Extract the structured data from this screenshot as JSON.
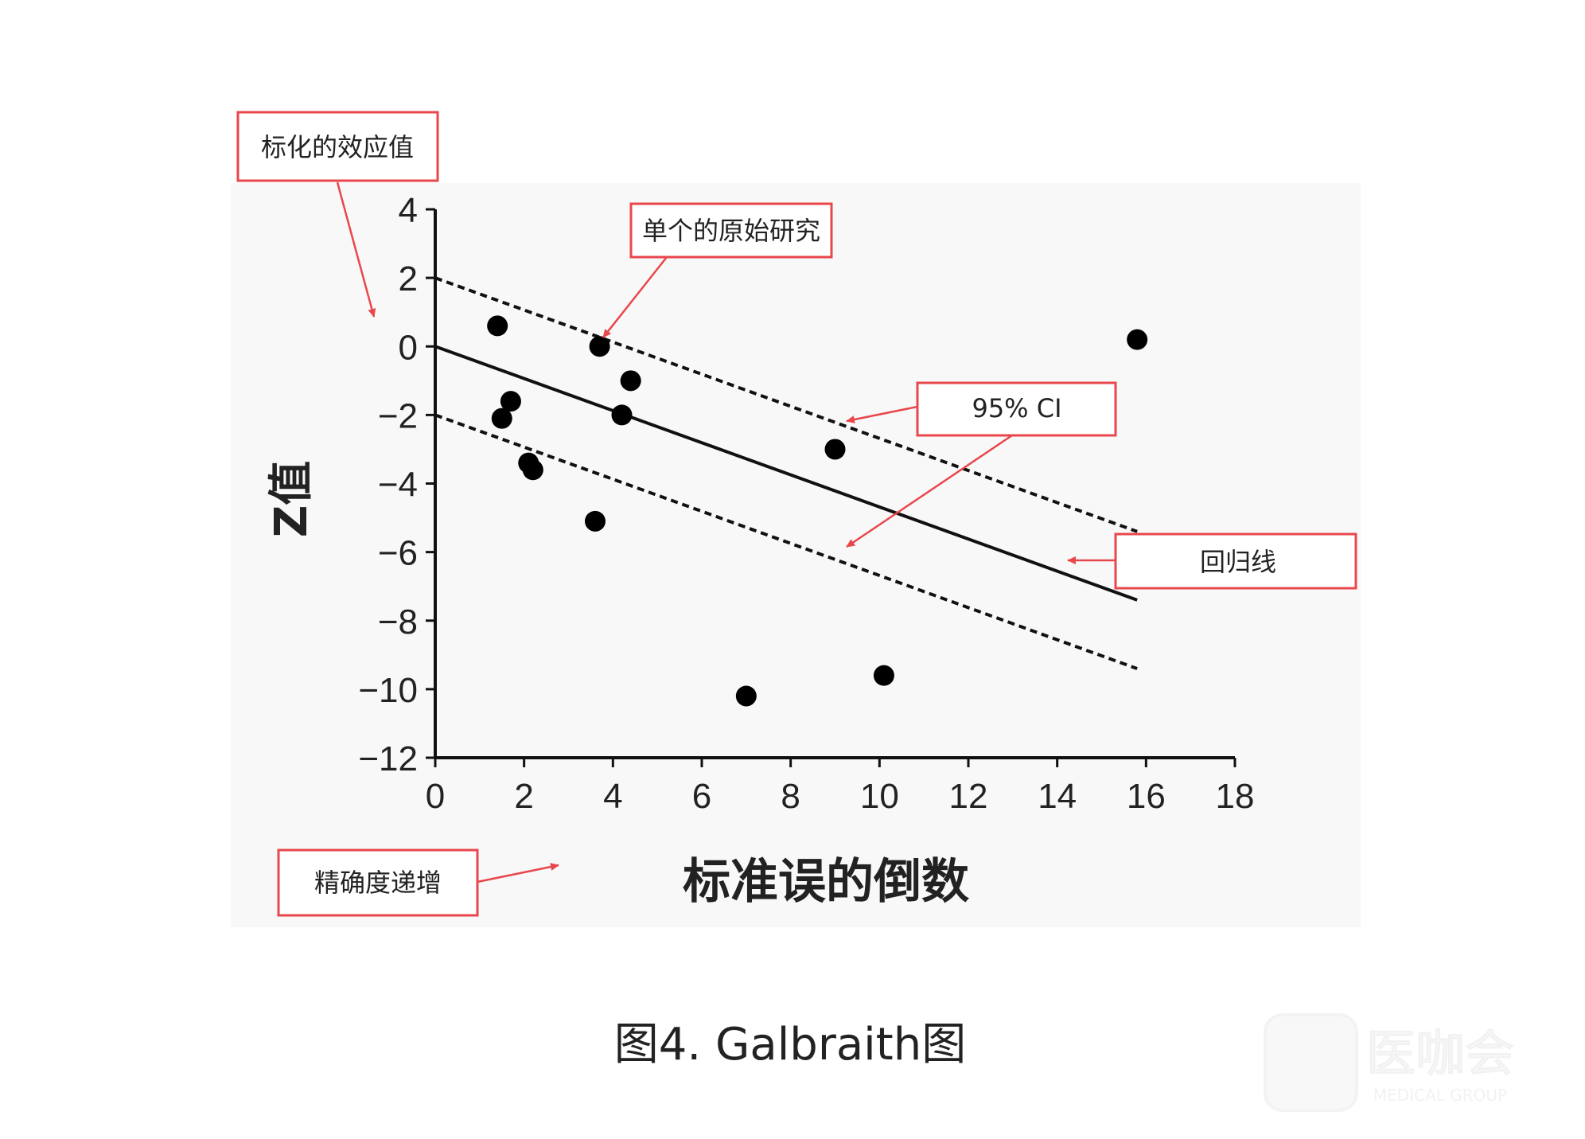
{
  "chart_data": {
    "type": "scatter",
    "title": "",
    "xlabel": "标准误的倒数",
    "ylabel": "Z值",
    "xlim": [
      0,
      18
    ],
    "ylim": [
      -12,
      4
    ],
    "xticks": [
      0,
      2,
      4,
      6,
      8,
      10,
      12,
      14,
      16,
      18
    ],
    "yticks": [
      4,
      2,
      0,
      -2,
      -4,
      -6,
      -8,
      -10,
      -12
    ],
    "ytick_labels": [
      "4",
      "2",
      "0",
      "−2",
      "−4",
      "−6",
      "−8",
      "−10",
      "−12"
    ],
    "grid": false,
    "points": [
      {
        "x": 1.4,
        "y": 0.6
      },
      {
        "x": 3.7,
        "y": 0.0
      },
      {
        "x": 4.4,
        "y": -1.0
      },
      {
        "x": 1.7,
        "y": -1.6
      },
      {
        "x": 1.5,
        "y": -2.1
      },
      {
        "x": 4.2,
        "y": -2.0
      },
      {
        "x": 2.1,
        "y": -3.4
      },
      {
        "x": 2.2,
        "y": -3.6
      },
      {
        "x": 3.6,
        "y": -5.1
      },
      {
        "x": 9.0,
        "y": -3.0
      },
      {
        "x": 15.8,
        "y": 0.2
      },
      {
        "x": 7.0,
        "y": -10.2
      },
      {
        "x": 10.1,
        "y": -9.6
      }
    ],
    "lines": [
      {
        "kind": "regression",
        "style": "solid",
        "x": [
          0,
          15.8
        ],
        "y": [
          0,
          -7.4
        ]
      },
      {
        "kind": "ci-upper",
        "style": "dashed",
        "x": [
          0,
          15.8
        ],
        "y": [
          2,
          -5.4
        ]
      },
      {
        "kind": "ci-lower",
        "style": "dashed",
        "x": [
          0,
          15.8
        ],
        "y": [
          -2,
          -9.4
        ]
      }
    ],
    "annotations": {
      "effect": "标化的效应值",
      "study": "单个的原始研究",
      "ci": "95% CI",
      "regression": "回归线",
      "precision": "精确度递增"
    }
  },
  "caption": "图4. Galbraith图",
  "watermark": {
    "text": "医咖会",
    "subtext": "MEDICAL GROUP"
  },
  "colors": {
    "annotation": "#e8474c",
    "marks": "#000000"
  }
}
